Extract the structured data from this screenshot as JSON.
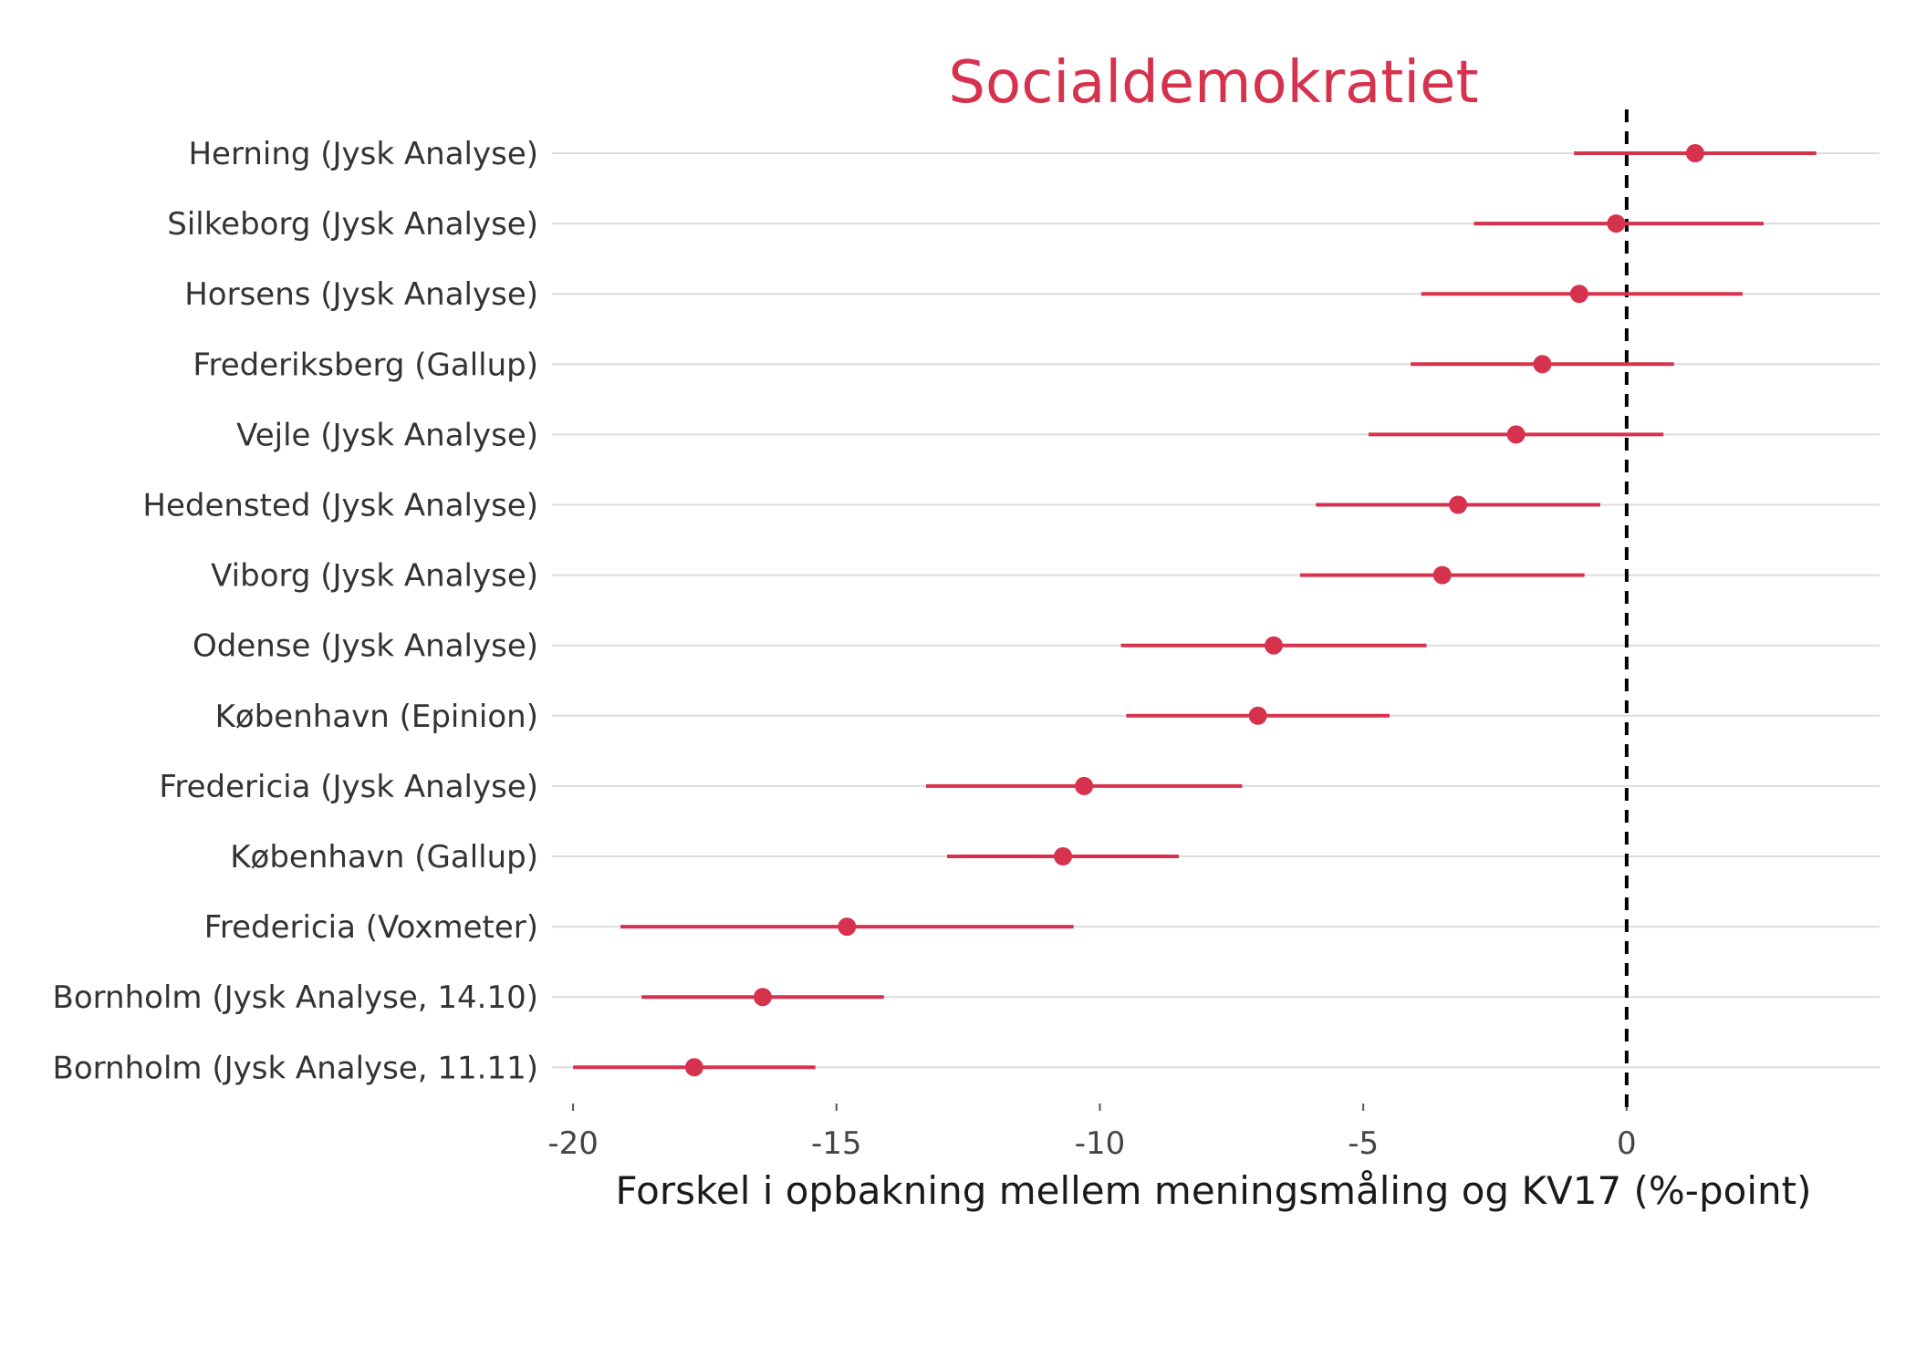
{
  "chart_data": {
    "type": "scatter",
    "subtype": "dot-with-errorbars",
    "title": "Socialdemokratiet",
    "xlabel": "Forskel i opbakning mellem meningsmåling og KV17 (%-point)",
    "ylabel": "",
    "xlim": [
      -20.4,
      4.8
    ],
    "xticks": [
      -20,
      -15,
      -10,
      -5,
      0
    ],
    "xtick_labels": [
      "-20",
      "-15",
      "-10",
      "-5",
      "0"
    ],
    "reference_line": 0,
    "color": "#d7324d",
    "points": [
      {
        "label": "Herning (Jysk Analyse)",
        "value": 1.3,
        "low": -1.0,
        "high": 3.6
      },
      {
        "label": "Silkeborg (Jysk Analyse)",
        "value": -0.2,
        "low": -2.9,
        "high": 2.6
      },
      {
        "label": "Horsens (Jysk Analyse)",
        "value": -0.9,
        "low": -3.9,
        "high": 2.2
      },
      {
        "label": "Frederiksberg (Gallup)",
        "value": -1.6,
        "low": -4.1,
        "high": 0.9
      },
      {
        "label": "Vejle (Jysk Analyse)",
        "value": -2.1,
        "low": -4.9,
        "high": 0.7
      },
      {
        "label": "Hedensted (Jysk Analyse)",
        "value": -3.2,
        "low": -5.9,
        "high": -0.5
      },
      {
        "label": "Viborg (Jysk Analyse)",
        "value": -3.5,
        "low": -6.2,
        "high": -0.8
      },
      {
        "label": "Odense (Jysk Analyse)",
        "value": -6.7,
        "low": -9.6,
        "high": -3.8
      },
      {
        "label": "København (Epinion)",
        "value": -7.0,
        "low": -9.5,
        "high": -4.5
      },
      {
        "label": "Fredericia (Jysk Analyse)",
        "value": -10.3,
        "low": -13.3,
        "high": -7.3
      },
      {
        "label": "København (Gallup)",
        "value": -10.7,
        "low": -12.9,
        "high": -8.5
      },
      {
        "label": "Fredericia (Voxmeter)",
        "value": -14.8,
        "low": -19.1,
        "high": -10.5
      },
      {
        "label": "Bornholm (Jysk Analyse, 14.10)",
        "value": -16.4,
        "low": -18.7,
        "high": -14.1
      },
      {
        "label": "Bornholm (Jysk Analyse, 11.11)",
        "value": -17.7,
        "low": -20.0,
        "high": -15.4
      }
    ]
  }
}
